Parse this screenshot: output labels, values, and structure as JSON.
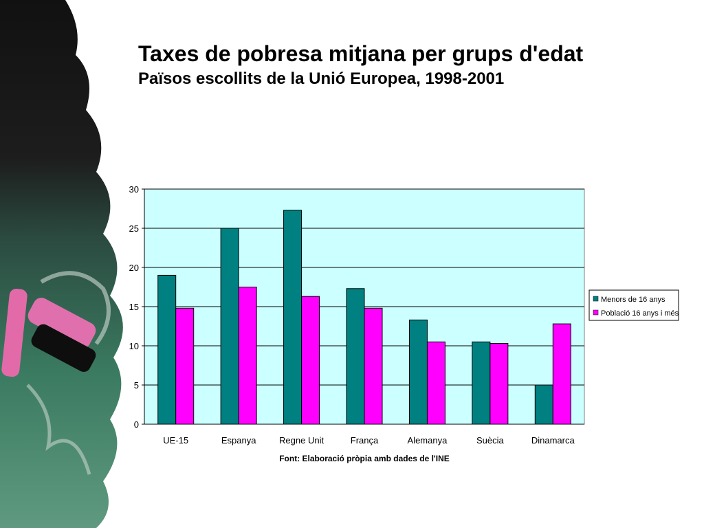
{
  "slide": {
    "title": "Taxes de pobresa mitjana per grups d'edat",
    "subtitle": "Països escollits de la Unió Europea, 1998-2001"
  },
  "chart_data": {
    "type": "bar",
    "title": "",
    "xlabel": "Font: Elaboració pròpia amb dades de l'INE",
    "ylabel": "",
    "categories": [
      "UE-15",
      "Espanya",
      "Regne Unit",
      "França",
      "Alemanya",
      "Suècia",
      "Dinamarca"
    ],
    "series": [
      {
        "name": "Menors de 16 anys",
        "values": [
          19,
          25,
          27.3,
          17.3,
          13.3,
          10.5,
          5
        ],
        "color": "#008080"
      },
      {
        "name": "Població 16 anys i més",
        "values": [
          14.8,
          17.5,
          16.3,
          14.8,
          10.5,
          10.3,
          12.8
        ],
        "color": "#ff00ff"
      }
    ],
    "ylim": [
      0,
      30
    ],
    "yticks": [
      0,
      5,
      10,
      15,
      20,
      25,
      30
    ],
    "grid": true,
    "legend": "right",
    "plot_background": "#ccffff"
  },
  "colors": {
    "background": "#ffffff",
    "chalkboard": "#1c1c1c",
    "chalkboard_green": "#2e6b55",
    "chalk_pink": "#e36aa8"
  }
}
